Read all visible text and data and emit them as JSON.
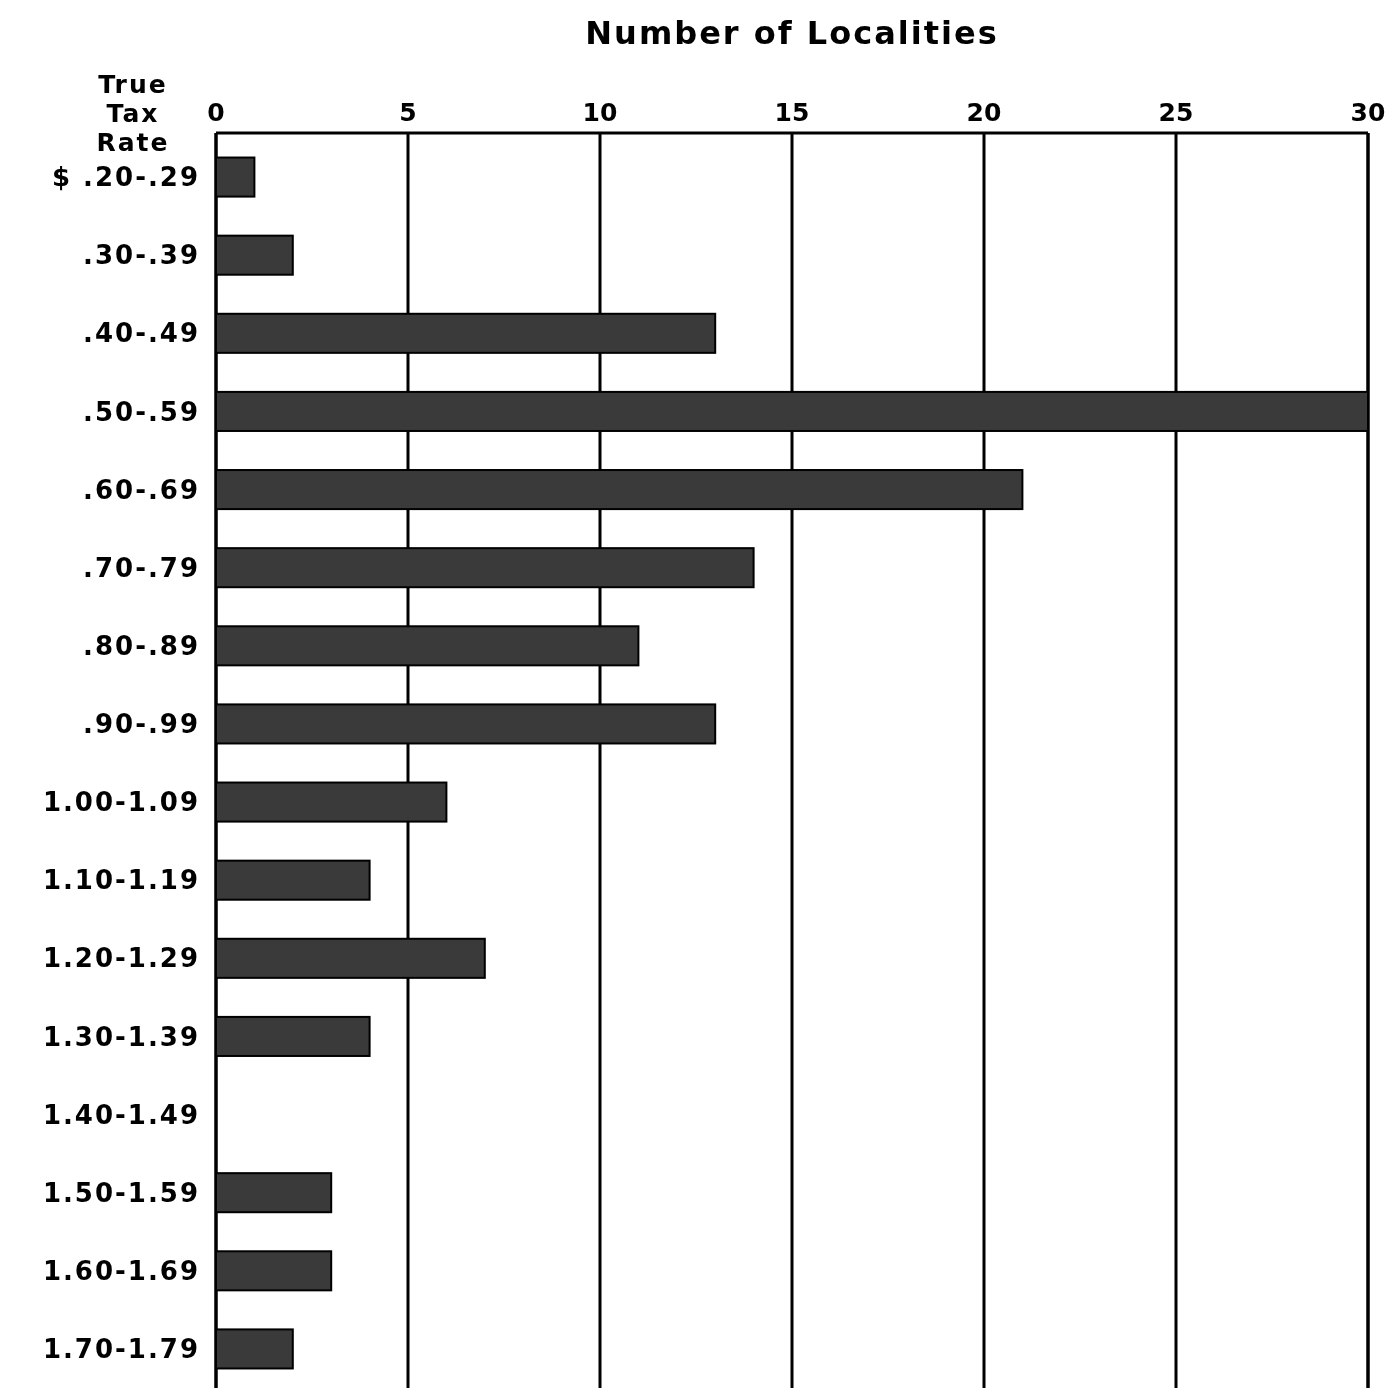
{
  "chart_data": {
    "type": "bar",
    "orientation": "horizontal",
    "xlabel": "Number of Localities",
    "ylabel": "True Tax Rate",
    "categories": [
      "$ .20-.29",
      ".30-.39",
      ".40-.49",
      ".50-.59",
      ".60-.69",
      ".70-.79",
      ".80-.89",
      ".90-.99",
      "1.00-1.09",
      "1.10-1.19",
      "1.20-1.29",
      "1.30-1.39",
      "1.40-1.49",
      "1.50-1.59",
      "1.60-1.69",
      "1.70-1.79"
    ],
    "values": [
      1,
      2,
      13,
      30,
      21,
      14,
      11,
      13,
      6,
      4,
      7,
      4,
      0,
      3,
      3,
      2
    ],
    "color": "#3a3a3a",
    "xlim": [
      0,
      30
    ],
    "xticks": [
      0,
      5,
      10,
      15,
      20,
      25,
      30
    ],
    "grid": "x"
  }
}
